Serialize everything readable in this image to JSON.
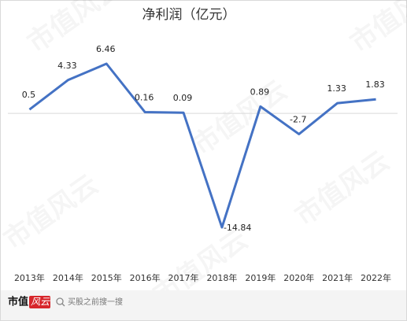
{
  "chart_data": {
    "type": "line",
    "title": "净利润（亿元）",
    "categories": [
      "2013年",
      "2014年",
      "2015年",
      "2016年",
      "2017年",
      "2018年",
      "2019年",
      "2020年",
      "2021年",
      "2022年"
    ],
    "values": [
      0.5,
      4.33,
      6.46,
      0.16,
      0.09,
      -14.84,
      0.89,
      -2.7,
      1.33,
      1.83
    ],
    "color": "#4472c4"
  },
  "watermark": "市值风云",
  "footer": {
    "brand_main": "市值",
    "brand_accent": "风云",
    "search": "买股之前搜一搜"
  }
}
